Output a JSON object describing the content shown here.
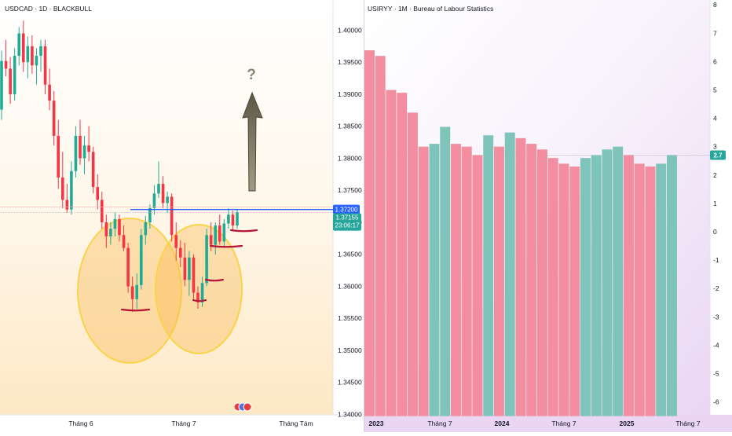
{
  "left_chart": {
    "title": "USDCAD · 1D · BLACKBULL",
    "y_ticks": [
      "1.40000",
      "1.39500",
      "1.39000",
      "1.38500",
      "1.38000",
      "1.37500",
      "1.37000",
      "1.36500",
      "1.36000",
      "1.35500",
      "1.35000",
      "1.34500",
      "1.34000"
    ],
    "x_labels": [
      "Tháng 6",
      "Tháng 7",
      "Tháng Tám"
    ],
    "annotation": "?",
    "price_badge_blue": "1.37200",
    "price_badge_green": "1.37155",
    "countdown": "23:06:17",
    "colors": {
      "up": "#22ab94",
      "down": "#f23645",
      "line": "#2962ff",
      "arrow": "#6b6550",
      "circle": "#fbb84b",
      "support": "#b5173a"
    }
  },
  "right_chart": {
    "title": "USIRYY · 1M · Bureau of Labour Statistics",
    "y_ticks": [
      "8",
      "7",
      "6",
      "5",
      "4",
      "3",
      "2",
      "1",
      "0",
      "-1",
      "-2",
      "-3",
      "-4",
      "-5",
      "-6"
    ],
    "x_labels": [
      "2023",
      "Tháng 7",
      "2024",
      "Tháng 7",
      "2025",
      "Tháng 7"
    ],
    "last_value": "2.7",
    "colors": {
      "up": "#7ec4bb",
      "down": "#f28ea0",
      "badge": "#26a69a"
    }
  },
  "chart_data": [
    {
      "type": "candlestick",
      "title": "USDCAD · 1D · BLACKBULL",
      "x_labels": [
        "Tháng 6",
        "Tháng 7",
        "Tháng Tám"
      ],
      "ylim": [
        1.339,
        1.402
      ],
      "candles": [
        [
          1.3876,
          1.3968,
          1.386,
          1.3952
        ],
        [
          1.3952,
          1.3985,
          1.3928,
          1.394
        ],
        [
          1.394,
          1.3958,
          1.3885,
          1.39
        ],
        [
          1.39,
          1.3972,
          1.389,
          1.396
        ],
        [
          1.396,
          1.4005,
          1.3945,
          1.3995
        ],
        [
          1.3995,
          1.4015,
          1.3935,
          1.395
        ],
        [
          1.395,
          1.399,
          1.3925,
          1.3975
        ],
        [
          1.3975,
          1.3992,
          1.3932,
          1.3945
        ],
        [
          1.3945,
          1.3972,
          1.3915,
          1.396
        ],
        [
          1.396,
          1.3985,
          1.3935,
          1.3975
        ],
        [
          1.3975,
          1.3985,
          1.39,
          1.3915
        ],
        [
          1.3915,
          1.394,
          1.3875,
          1.389
        ],
        [
          1.389,
          1.3905,
          1.382,
          1.3835
        ],
        [
          1.3835,
          1.386,
          1.3752,
          1.377
        ],
        [
          1.377,
          1.381,
          1.3722,
          1.3735
        ],
        [
          1.3735,
          1.376,
          1.3715,
          1.372
        ],
        [
          1.372,
          1.3795,
          1.3712,
          1.378
        ],
        [
          1.378,
          1.385,
          1.377,
          1.3835
        ],
        [
          1.3835,
          1.386,
          1.379,
          1.38
        ],
        [
          1.38,
          1.3835,
          1.3775,
          1.382
        ],
        [
          1.382,
          1.385,
          1.3795,
          1.381
        ],
        [
          1.381,
          1.3818,
          1.3745,
          1.3755
        ],
        [
          1.3755,
          1.3775,
          1.372,
          1.3735
        ],
        [
          1.3735,
          1.3748,
          1.369,
          1.37
        ],
        [
          1.37,
          1.3712,
          1.366,
          1.3678
        ],
        [
          1.3678,
          1.37,
          1.3665,
          1.369
        ],
        [
          1.369,
          1.3715,
          1.3678,
          1.3705
        ],
        [
          1.3705,
          1.3712,
          1.367,
          1.368
        ],
        [
          1.368,
          1.3695,
          1.3655,
          1.366
        ],
        [
          1.366,
          1.3668,
          1.359,
          1.36
        ],
        [
          1.36,
          1.3615,
          1.356,
          1.358
        ],
        [
          1.358,
          1.362,
          1.3565,
          1.3602
        ],
        [
          1.3602,
          1.369,
          1.3595,
          1.368
        ],
        [
          1.368,
          1.371,
          1.3665,
          1.37
        ],
        [
          1.37,
          1.3728,
          1.369,
          1.3722
        ],
        [
          1.3722,
          1.3758,
          1.3712,
          1.3745
        ],
        [
          1.3745,
          1.3795,
          1.3738,
          1.376
        ],
        [
          1.376,
          1.3772,
          1.3722,
          1.373
        ],
        [
          1.373,
          1.3748,
          1.3715,
          1.374
        ],
        [
          1.374,
          1.3745,
          1.367,
          1.368
        ],
        [
          1.368,
          1.37,
          1.364,
          1.366
        ],
        [
          1.366,
          1.3672,
          1.363,
          1.3645
        ],
        [
          1.3645,
          1.3668,
          1.36,
          1.361
        ],
        [
          1.361,
          1.3655,
          1.3585,
          1.3645
        ],
        [
          1.3645,
          1.365,
          1.358,
          1.359
        ],
        [
          1.359,
          1.36,
          1.3565,
          1.3575
        ],
        [
          1.3575,
          1.3615,
          1.3568,
          1.3605
        ],
        [
          1.3605,
          1.369,
          1.36,
          1.368
        ],
        [
          1.368,
          1.37,
          1.3655,
          1.3665
        ],
        [
          1.3665,
          1.37,
          1.365,
          1.3695
        ],
        [
          1.3695,
          1.3712,
          1.3665,
          1.367
        ],
        [
          1.367,
          1.3705,
          1.366,
          1.3698
        ],
        [
          1.3698,
          1.3722,
          1.369,
          1.3712
        ],
        [
          1.3712,
          1.3718,
          1.3688,
          1.3695
        ],
        [
          1.3695,
          1.372,
          1.369,
          1.37155
        ]
      ],
      "horizontal_line": 1.372
    },
    {
      "type": "bar",
      "title": "USIRYY · 1M · Bureau of Labour Statistics",
      "x_labels": [
        "2023",
        "Tháng 7",
        "2024",
        "Tháng 7",
        "2025",
        "Tháng 7"
      ],
      "ylim": [
        -6.5,
        8.2
      ],
      "values": [
        6.4,
        6.2,
        5.0,
        4.9,
        4.2,
        3.0,
        3.1,
        3.7,
        3.1,
        3.0,
        2.7,
        3.4,
        3.0,
        3.5,
        3.3,
        3.1,
        2.9,
        2.6,
        2.4,
        2.3,
        2.6,
        2.7,
        2.9,
        3.0,
        2.7,
        2.4,
        2.3,
        2.4,
        2.7
      ],
      "last_value": 2.7
    }
  ]
}
